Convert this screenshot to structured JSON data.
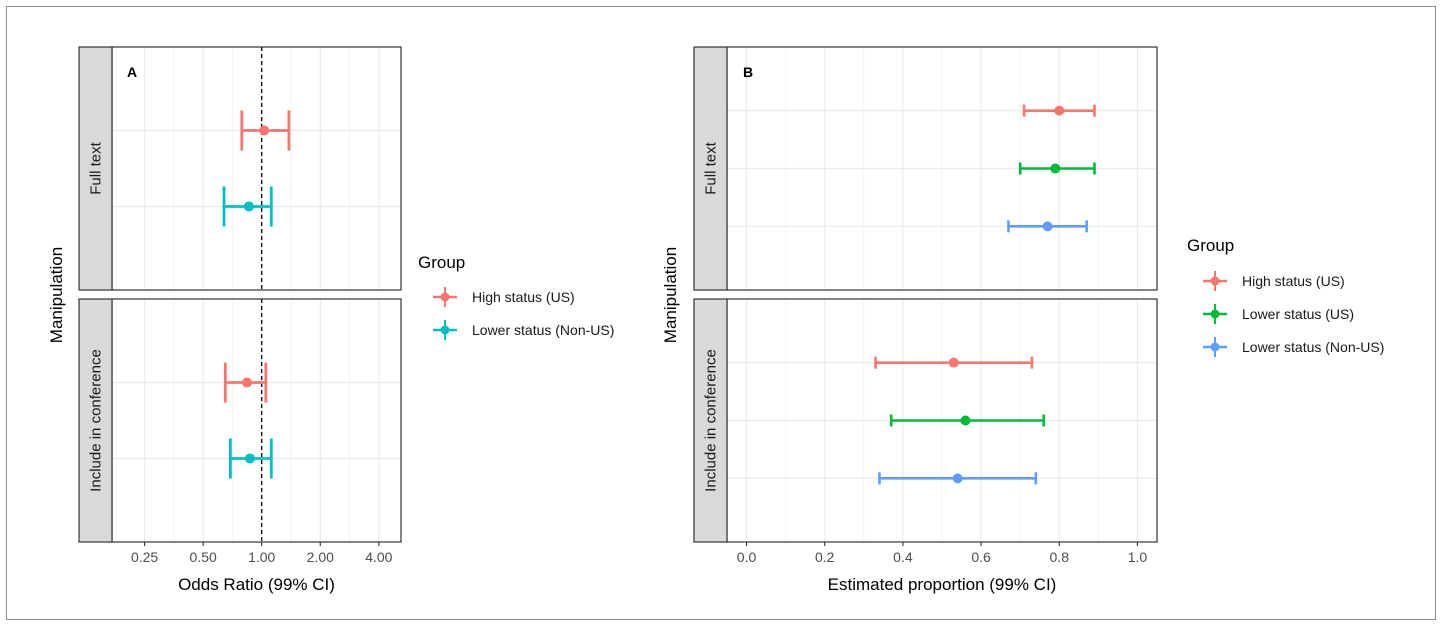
{
  "chart_data": [
    {
      "type": "forest",
      "panel_label": "A",
      "xlabel": "Odds Ratio (99% CI)",
      "ylabel": "Manipulation",
      "x_scale": "log2",
      "xlim": [
        0.17,
        5.2
      ],
      "x_ticks": [
        0.25,
        0.5,
        1,
        2,
        4
      ],
      "x_tick_labels": [
        "0.25",
        "0.50",
        "1.00",
        "2.00",
        "4.00"
      ],
      "reference_line": 1,
      "grid": true,
      "facets": [
        {
          "label": "Full text",
          "rows": [
            {
              "group": "High status (US)",
              "estimate": 1.03,
              "lower": 0.79,
              "upper": 1.38
            },
            {
              "group": "Lower status (Non-US)",
              "estimate": 0.86,
              "lower": 0.64,
              "upper": 1.12
            }
          ]
        },
        {
          "label": "Include in conference",
          "rows": [
            {
              "group": "High status (US)",
              "estimate": 0.84,
              "lower": 0.65,
              "upper": 1.05
            },
            {
              "group": "Lower status (Non-US)",
              "estimate": 0.87,
              "lower": 0.69,
              "upper": 1.12
            }
          ]
        }
      ],
      "legend": {
        "title": "Group",
        "position": "right",
        "items": [
          {
            "label": "High status (US)",
            "color": "#F8766D"
          },
          {
            "label": "Lower status (Non-US)",
            "color": "#00BFC4"
          }
        ]
      }
    },
    {
      "type": "forest",
      "panel_label": "B",
      "xlabel": "Estimated proportion (99% CI)",
      "ylabel": "Manipulation",
      "x_scale": "linear",
      "xlim": [
        -0.05,
        1.05
      ],
      "x_ticks": [
        0,
        0.2,
        0.4,
        0.6,
        0.8,
        1
      ],
      "x_tick_labels": [
        "0.0",
        "0.2",
        "0.4",
        "0.6",
        "0.8",
        "1.0"
      ],
      "grid": true,
      "facets": [
        {
          "label": "Full text",
          "rows": [
            {
              "group": "High status (US)",
              "estimate": 0.8,
              "lower": 0.71,
              "upper": 0.89
            },
            {
              "group": "Lower status (US)",
              "estimate": 0.79,
              "lower": 0.7,
              "upper": 0.89
            },
            {
              "group": "Lower status (Non-US)",
              "estimate": 0.77,
              "lower": 0.67,
              "upper": 0.87
            }
          ]
        },
        {
          "label": "Include in conference",
          "rows": [
            {
              "group": "High status (US)",
              "estimate": 0.53,
              "lower": 0.33,
              "upper": 0.73
            },
            {
              "group": "Lower status (US)",
              "estimate": 0.56,
              "lower": 0.37,
              "upper": 0.76
            },
            {
              "group": "Lower status (Non-US)",
              "estimate": 0.54,
              "lower": 0.34,
              "upper": 0.74
            }
          ]
        }
      ],
      "legend": {
        "title": "Group",
        "position": "right",
        "items": [
          {
            "label": "High status (US)",
            "color": "#F8766D"
          },
          {
            "label": "Lower status (US)",
            "color": "#00BA38"
          },
          {
            "label": "Lower status (Non-US)",
            "color": "#619CFF"
          }
        ]
      }
    }
  ]
}
